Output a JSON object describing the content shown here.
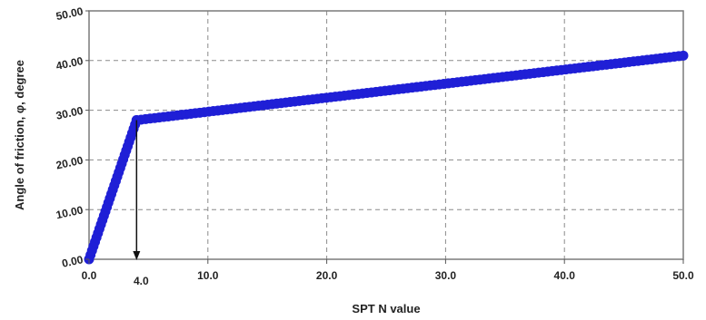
{
  "chart_data": {
    "type": "line",
    "xlabel": "SPT N value",
    "ylabel": "Angle of friction, φ, degree",
    "xlim": [
      0,
      50
    ],
    "ylim": [
      0,
      50
    ],
    "x_ticks": [
      "0.0",
      "10.0",
      "20.0",
      "30.0",
      "40.0",
      "50.0"
    ],
    "y_ticks": [
      "0.00",
      "10.00",
      "20.00",
      "30.00",
      "40.00",
      "50.00"
    ],
    "grid": true,
    "series": [
      {
        "x": [
          0,
          4,
          50
        ],
        "y": [
          0,
          28,
          41
        ],
        "color": "#1f1fd6"
      }
    ],
    "annotations": [
      {
        "type": "arrow",
        "x": 4,
        "from_y": 28,
        "to_y": 0,
        "label": "4.0"
      }
    ]
  }
}
